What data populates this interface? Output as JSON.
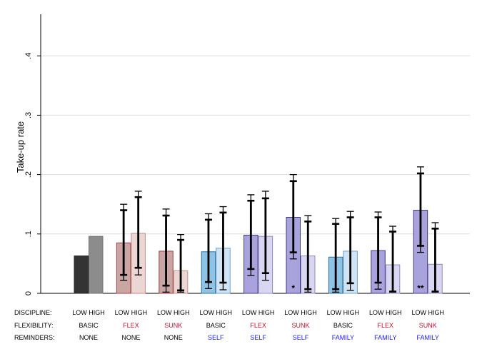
{
  "chart_data": {
    "type": "bar",
    "ylabel": "Take-up rate",
    "ylim": [
      0,
      0.47
    ],
    "yticks": [
      {
        "value": 0,
        "label": "0"
      },
      {
        "value": 0.1,
        "label": ".1"
      },
      {
        "value": 0.2,
        "label": ".2"
      },
      {
        "value": 0.3,
        "label": ".3"
      },
      {
        "value": 0.4,
        "label": ".4"
      }
    ],
    "grid": true,
    "row_labels": {
      "discipline": "DISCIPLINE:",
      "flexibility": "FLEXIBILITY:",
      "reminders": "REMINDERS:"
    },
    "series_names": [
      "LOW",
      "HIGH"
    ],
    "groups": [
      {
        "discipline": "LOW HIGH",
        "flexibility": "BASIC",
        "reminders": "NONE",
        "flex_color": "#000000",
        "rem_color": "#000000",
        "bars": [
          {
            "value": 0.063,
            "fill": "#333333",
            "stroke": "#222222",
            "ci": null,
            "inner": null,
            "star": ""
          },
          {
            "value": 0.096,
            "fill": "#8c8c8c",
            "stroke": "#707070",
            "ci": null,
            "inner": null,
            "star": ""
          }
        ]
      },
      {
        "discipline": "LOW HIGH",
        "flexibility": "FLEX",
        "reminders": "NONE",
        "flex_color": "#c8102e",
        "rem_color": "#000000",
        "bars": [
          {
            "value": 0.085,
            "fill": "#c9a5a3",
            "stroke": "#a04040",
            "ci": [
              0.022,
              0.15
            ],
            "inner": [
              0.031,
              0.14
            ],
            "star": ""
          },
          {
            "value": 0.101,
            "fill": "#ecd6d4",
            "stroke": "#c28a88",
            "ci": [
              0.031,
              0.172
            ],
            "inner": [
              0.043,
              0.162
            ],
            "star": ""
          }
        ]
      },
      {
        "discipline": "LOW HIGH",
        "flexibility": "SUNK",
        "reminders": "NONE",
        "flex_color": "#c8102e",
        "rem_color": "#000000",
        "bars": [
          {
            "value": 0.071,
            "fill": "#c9a5a3",
            "stroke": "#a04040",
            "ci": [
              0.002,
              0.142
            ],
            "inner": [
              0.013,
              0.131
            ],
            "star": ""
          },
          {
            "value": 0.038,
            "fill": "#ecd6d4",
            "stroke": "#c28a88",
            "ci": [
              0.002,
              0.099
            ],
            "inner": [
              0.005,
              0.09
            ],
            "star": ""
          }
        ]
      },
      {
        "discipline": "LOW HIGH",
        "flexibility": "BASIC",
        "reminders": "SELF",
        "flex_color": "#000000",
        "rem_color": "#1a1aff",
        "bars": [
          {
            "value": 0.07,
            "fill": "#8ec3e6",
            "stroke": "#2e6e9e",
            "ci": [
              0.008,
              0.134
            ],
            "inner": [
              0.019,
              0.124
            ],
            "star": ""
          },
          {
            "value": 0.076,
            "fill": "#cfe5f5",
            "stroke": "#6f9fc4",
            "ci": [
              0.006,
              0.146
            ],
            "inner": [
              0.018,
              0.136
            ],
            "star": ""
          }
        ]
      },
      {
        "discipline": "LOW HIGH",
        "flexibility": "FLEX",
        "reminders": "SELF",
        "flex_color": "#c8102e",
        "rem_color": "#1a1aff",
        "bars": [
          {
            "value": 0.098,
            "fill": "#a9a3dd",
            "stroke": "#3d3a80",
            "ci": [
              0.03,
              0.166
            ],
            "inner": [
              0.041,
              0.156
            ],
            "star": ""
          },
          {
            "value": 0.096,
            "fill": "#d9d6f1",
            "stroke": "#8c88c0",
            "ci": [
              0.022,
              0.172
            ],
            "inner": [
              0.034,
              0.16
            ],
            "star": ""
          }
        ]
      },
      {
        "discipline": "LOW HIGH",
        "flexibility": "SUNK",
        "reminders": "SELF",
        "flex_color": "#c8102e",
        "rem_color": "#1a1aff",
        "bars": [
          {
            "value": 0.128,
            "fill": "#a9a3dd",
            "stroke": "#3d3a80",
            "ci": [
              0.058,
              0.2
            ],
            "inner": [
              0.069,
              0.189
            ],
            "star": "*"
          },
          {
            "value": 0.063,
            "fill": "#d9d6f1",
            "stroke": "#8c88c0",
            "ci": [
              0.002,
              0.131
            ],
            "inner": [
              0.007,
              0.121
            ],
            "star": ""
          }
        ]
      },
      {
        "discipline": "LOW HIGH",
        "flexibility": "BASIC",
        "reminders": "FAMILY",
        "flex_color": "#000000",
        "rem_color": "#1a1aff",
        "bars": [
          {
            "value": 0.061,
            "fill": "#8ec3e6",
            "stroke": "#2e6e9e",
            "ci": [
              0.002,
              0.126
            ],
            "inner": [
              0.007,
              0.117
            ],
            "star": ""
          },
          {
            "value": 0.071,
            "fill": "#cfe5f5",
            "stroke": "#6f9fc4",
            "ci": [
              0.005,
              0.138
            ],
            "inner": [
              0.017,
              0.128
            ],
            "star": ""
          }
        ]
      },
      {
        "discipline": "LOW HIGH",
        "flexibility": "FLEX",
        "reminders": "FAMILY",
        "flex_color": "#c8102e",
        "rem_color": "#1a1aff",
        "bars": [
          {
            "value": 0.072,
            "fill": "#a9a3dd",
            "stroke": "#3d3a80",
            "ci": [
              0.007,
              0.137
            ],
            "inner": [
              0.018,
              0.128
            ],
            "star": ""
          },
          {
            "value": 0.048,
            "fill": "#d9d6f1",
            "stroke": "#8c88c0",
            "ci": [
              0.002,
              0.113
            ],
            "inner": [
              0.003,
              0.104
            ],
            "star": ""
          }
        ]
      },
      {
        "discipline": "LOW HIGH",
        "flexibility": "SUNK",
        "reminders": "FAMILY",
        "flex_color": "#c8102e",
        "rem_color": "#1a1aff",
        "bars": [
          {
            "value": 0.14,
            "fill": "#a9a3dd",
            "stroke": "#3d3a80",
            "ci": [
              0.069,
              0.213
            ],
            "inner": [
              0.08,
              0.202
            ],
            "star": "**"
          },
          {
            "value": 0.049,
            "fill": "#d9d6f1",
            "stroke": "#8c88c0",
            "ci": [
              0.002,
              0.119
            ],
            "inner": [
              0.003,
              0.109
            ],
            "star": ""
          }
        ]
      }
    ]
  }
}
